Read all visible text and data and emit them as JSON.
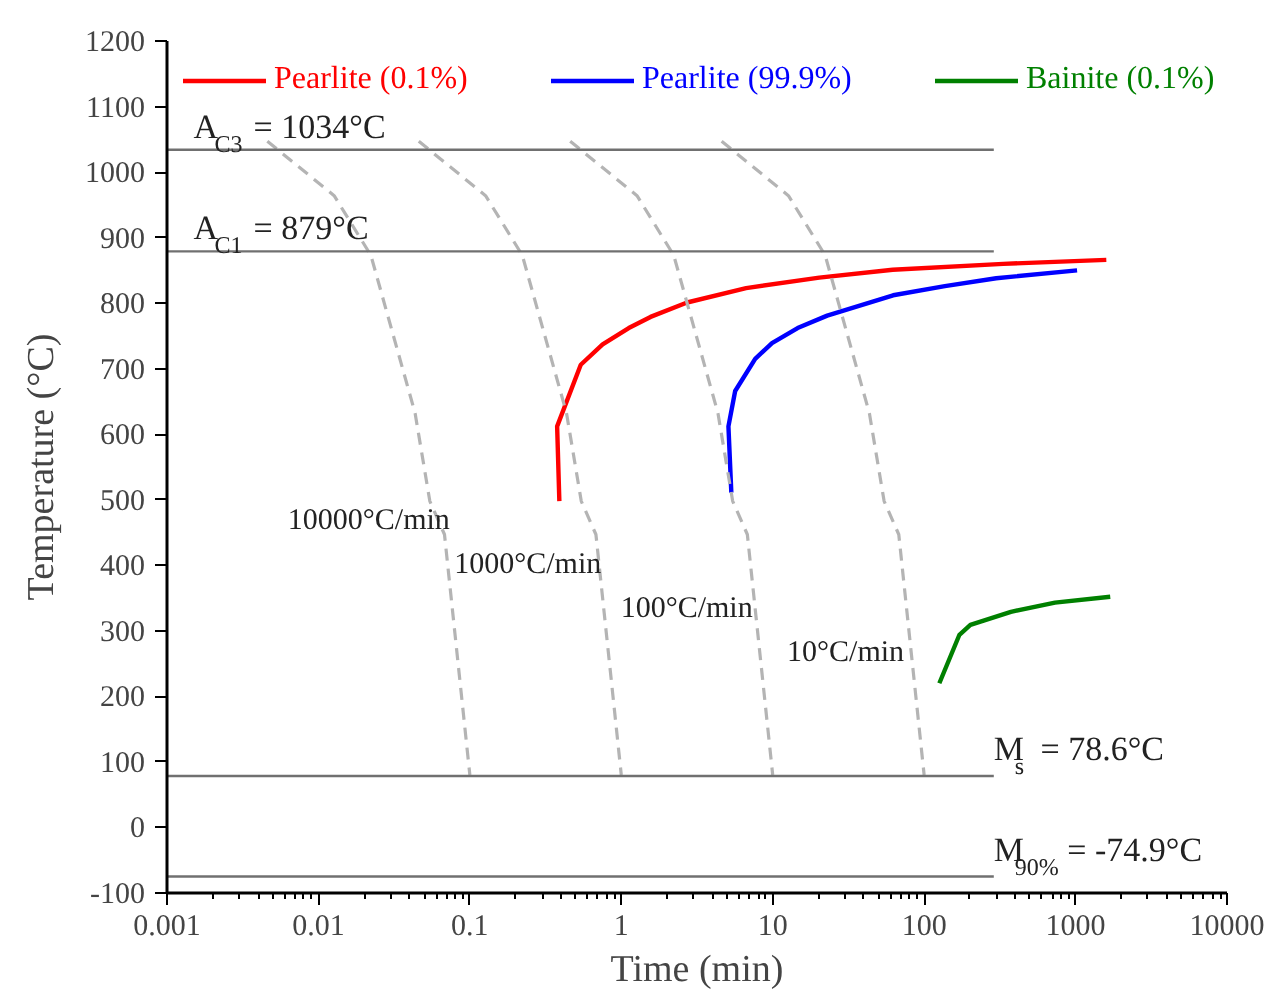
{
  "chart_data": {
    "type": "line",
    "xlabel": "Time (min)",
    "ylabel": "Temperature (°C)",
    "log": "x",
    "grid": false,
    "legend": "top",
    "xlim": [
      0.001,
      10000
    ],
    "ylim": [
      -100,
      1200
    ],
    "xticks": [
      0.001,
      0.01,
      0.1,
      1,
      10,
      100,
      1000,
      10000
    ],
    "yticks": [
      -100,
      0,
      100,
      200,
      300,
      400,
      500,
      600,
      700,
      800,
      900,
      1000,
      1100,
      1200
    ],
    "series": [
      {
        "name": "Pearlite (0.1%)",
        "color": "#ff0000",
        "x": [
          0.39,
          0.377,
          0.54,
          0.753,
          1.12,
          1.56,
          2.72,
          6.67,
          20.3,
          62,
          333,
          1596
        ],
        "values": [
          498,
          612,
          706,
          737,
          762,
          779,
          801,
          823,
          839,
          851,
          860,
          866
        ]
      },
      {
        "name": "Pearlite (99.9%)",
        "color": "#0000ff",
        "x": [
          5.33,
          5.1,
          5.65,
          7.66,
          9.89,
          14.6,
          22.9,
          62.4,
          137,
          299,
          1023
        ],
        "values": [
          511,
          612,
          666,
          715,
          739,
          762,
          781,
          812,
          826,
          838,
          850
        ]
      },
      {
        "name": "Bainite (0.1%)",
        "color": "#008000",
        "x": [
          126,
          171,
          202,
          374,
          731,
          1694
        ],
        "values": [
          220,
          294,
          309,
          329,
          343,
          352
        ]
      },
      {
        "color": "#b4b4b4",
        "line_style": "dashed",
        "x": [
          0.0046,
          0.0127,
          0.0222,
          0.0435,
          0.0544,
          0.068,
          0.1
        ],
        "values": [
          1047,
          964,
          873,
          632,
          498,
          447,
          80
        ]
      },
      {
        "color": "#b4b4b4",
        "line_style": "dashed",
        "x": [
          0.046,
          0.127,
          0.222,
          0.435,
          0.544,
          0.68,
          1
        ],
        "values": [
          1047,
          964,
          873,
          632,
          498,
          447,
          80
        ]
      },
      {
        "color": "#b4b4b4",
        "line_style": "dashed",
        "x": [
          0.46,
          1.27,
          2.22,
          4.35,
          5.44,
          6.8,
          10
        ],
        "values": [
          1047,
          964,
          873,
          632,
          498,
          447,
          80
        ]
      },
      {
        "color": "#b4b4b4",
        "line_style": "dashed",
        "x": [
          4.6,
          12.7,
          22.2,
          43.5,
          54.4,
          68,
          100
        ],
        "values": [
          1047,
          964,
          873,
          632,
          498,
          447,
          80
        ]
      }
    ],
    "ref_lines": [
      {
        "axis": "y",
        "value": 1034,
        "label": "A$_{C3}$ = 1034°C",
        "color": "#707070"
      },
      {
        "axis": "y",
        "value": 879,
        "label": "A$_{C1}$ = 879°C",
        "color": "#707070"
      },
      {
        "axis": "y",
        "value": 78.6,
        "label": "M$_{s}$ = 78.6°C",
        "color": "#707070"
      },
      {
        "axis": "y",
        "value": -74.9,
        "label": "M$_{90%}$ = -74.9°C",
        "color": "#707070"
      }
    ],
    "annotations": [
      "10000°C/min",
      "1000°C/min",
      "100°C/min",
      "10°C/min"
    ]
  }
}
